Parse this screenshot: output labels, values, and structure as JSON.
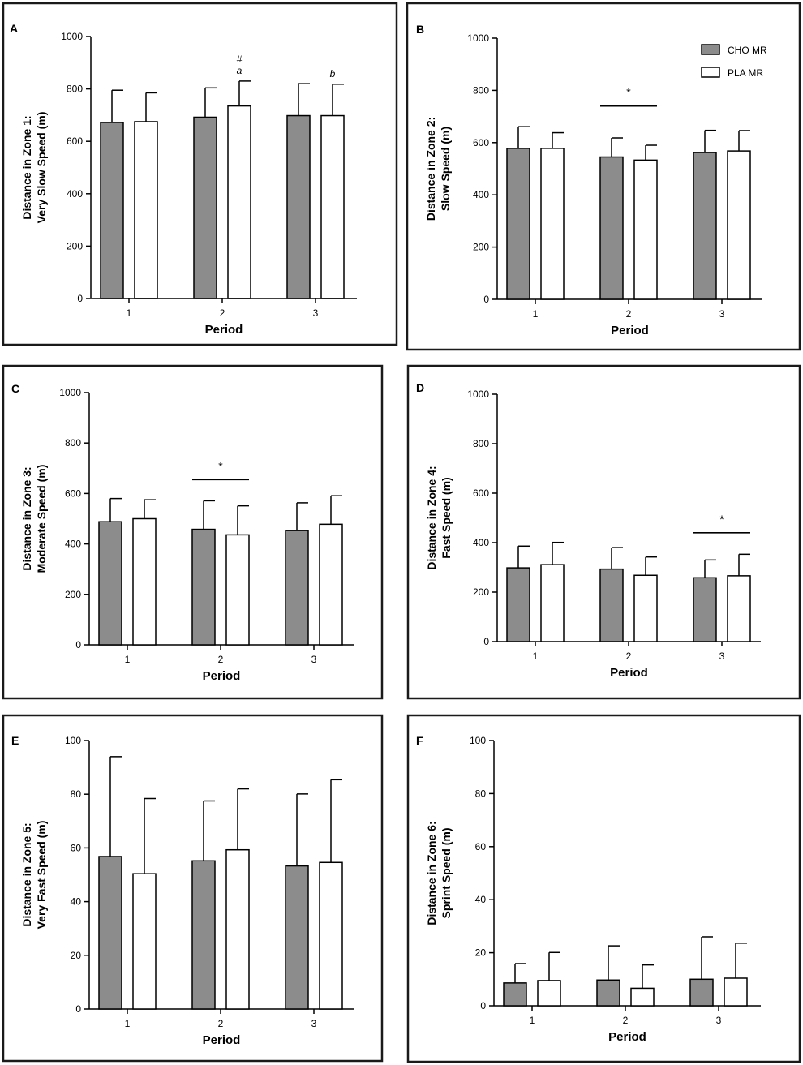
{
  "legend": {
    "cho": "CHO MR",
    "pla": "PLA MR"
  },
  "colors": {
    "cho": "#8c8c8c",
    "pla": "#ffffff",
    "stroke": "#000000"
  },
  "chart_data": [
    {
      "type": "bar",
      "panel": "A",
      "ylabel_line1": "Distance in Zone 1:",
      "ylabel_line2": "Very Slow Speed (m)",
      "xlabel": "Period",
      "categories": [
        "1",
        "2",
        "3"
      ],
      "ylim": [
        0,
        1000
      ],
      "yticks": [
        0,
        200,
        400,
        600,
        800,
        1000
      ],
      "series": [
        {
          "name": "CHO MR",
          "values": [
            672,
            692,
            698
          ],
          "errors": [
            123,
            112,
            122
          ]
        },
        {
          "name": "PLA MR",
          "values": [
            675,
            735,
            698
          ],
          "errors": [
            110,
            95,
            120
          ]
        }
      ],
      "annotations": [
        {
          "category": 1,
          "series": 1,
          "lines": [
            "#",
            "a"
          ]
        },
        {
          "category": 2,
          "series": 1,
          "lines": [
            "b"
          ]
        }
      ]
    },
    {
      "type": "bar",
      "panel": "B",
      "ylabel_line1": "Distance in Zone 2:",
      "ylabel_line2": "Slow Speed (m)",
      "xlabel": "Period",
      "categories": [
        "1",
        "2",
        "3"
      ],
      "ylim": [
        0,
        1000
      ],
      "yticks": [
        0,
        200,
        400,
        600,
        800,
        1000
      ],
      "series": [
        {
          "name": "CHO MR",
          "values": [
            578,
            545,
            562
          ],
          "errors": [
            83,
            73,
            85
          ]
        },
        {
          "name": "PLA MR",
          "values": [
            578,
            533,
            568
          ],
          "errors": [
            60,
            57,
            78
          ]
        }
      ],
      "significance": {
        "category": 1,
        "y": 740,
        "label": "*"
      },
      "legend": true
    },
    {
      "type": "bar",
      "panel": "C",
      "ylabel_line1": "Distance in Zone 3:",
      "ylabel_line2": "Moderate Speed (m)",
      "xlabel": "Period",
      "categories": [
        "1",
        "2",
        "3"
      ],
      "ylim": [
        0,
        1000
      ],
      "yticks": [
        0,
        200,
        400,
        600,
        800,
        1000
      ],
      "series": [
        {
          "name": "CHO MR",
          "values": [
            488,
            458,
            453
          ],
          "errors": [
            92,
            113,
            110
          ]
        },
        {
          "name": "PLA MR",
          "values": [
            500,
            436,
            478
          ],
          "errors": [
            75,
            115,
            113
          ]
        }
      ],
      "significance": {
        "category": 1,
        "y": 655,
        "label": "*"
      }
    },
    {
      "type": "bar",
      "panel": "D",
      "ylabel_line1": "Distance in Zone 4:",
      "ylabel_line2": "Fast Speed (m)",
      "xlabel": "Period",
      "categories": [
        "1",
        "2",
        "3"
      ],
      "ylim": [
        0,
        1000
      ],
      "yticks": [
        0,
        200,
        400,
        600,
        800,
        1000
      ],
      "series": [
        {
          "name": "CHO MR",
          "values": [
            298,
            293,
            258
          ],
          "errors": [
            88,
            87,
            72
          ]
        },
        {
          "name": "PLA MR",
          "values": [
            311,
            268,
            266
          ],
          "errors": [
            90,
            74,
            87
          ]
        }
      ],
      "significance": {
        "category": 2,
        "y": 440,
        "label": "*"
      }
    },
    {
      "type": "bar",
      "panel": "E",
      "ylabel_line1": "Distance in Zone 5:",
      "ylabel_line2": "Very Fast Speed (m)",
      "xlabel": "Period",
      "categories": [
        "1",
        "2",
        "3"
      ],
      "ylim": [
        0,
        100
      ],
      "yticks": [
        0,
        20,
        40,
        60,
        80,
        100
      ],
      "series": [
        {
          "name": "CHO MR",
          "values": [
            56.8,
            55.2,
            53.3
          ],
          "errors": [
            37.2,
            22.3,
            26.8
          ]
        },
        {
          "name": "PLA MR",
          "values": [
            50.4,
            59.3,
            54.6
          ],
          "errors": [
            28.0,
            22.7,
            30.8
          ]
        }
      ]
    },
    {
      "type": "bar",
      "panel": "F",
      "ylabel_line1": "Distance in Zone 6:",
      "ylabel_line2": "Sprint Speed  (m)",
      "xlabel": "Period",
      "categories": [
        "1",
        "2",
        "3"
      ],
      "ylim": [
        0,
        100
      ],
      "yticks": [
        0,
        20,
        40,
        60,
        80,
        100
      ],
      "series": [
        {
          "name": "CHO MR",
          "values": [
            8.6,
            9.7,
            10.0
          ],
          "errors": [
            7.3,
            12.9,
            16.0
          ]
        },
        {
          "name": "PLA MR",
          "values": [
            9.5,
            6.6,
            10.4
          ],
          "errors": [
            10.6,
            8.8,
            13.2
          ]
        }
      ]
    }
  ]
}
